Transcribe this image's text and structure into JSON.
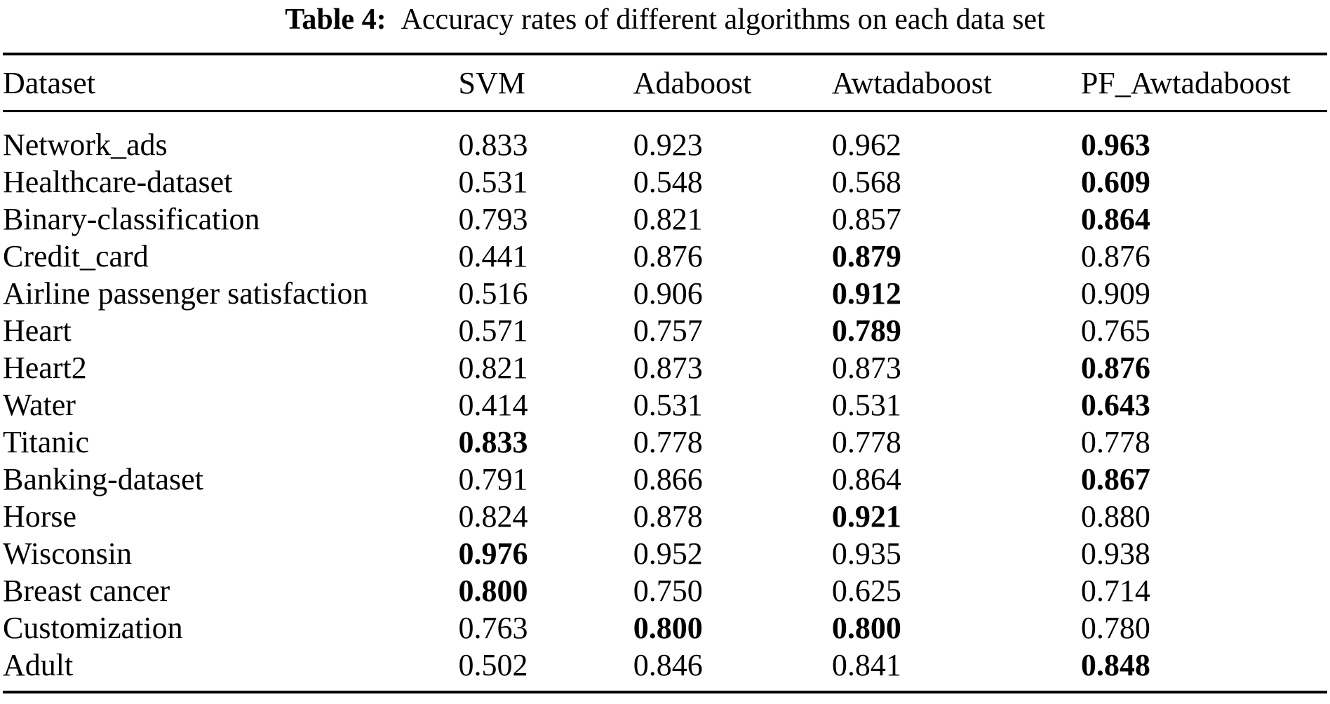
{
  "caption": {
    "label": "Table 4:",
    "text": "Accuracy rates of different algorithms on each data set"
  },
  "table": {
    "columns": [
      "Dataset",
      "SVM",
      "Adaboost",
      "Awtadaboost",
      "PF_Awtadaboost"
    ],
    "rows": [
      {
        "dataset": "Network_ads",
        "values": [
          "0.833",
          "0.923",
          "0.962",
          "0.963"
        ],
        "bold": [
          false,
          false,
          false,
          true
        ]
      },
      {
        "dataset": "Healthcare-dataset",
        "values": [
          "0.531",
          "0.548",
          "0.568",
          "0.609"
        ],
        "bold": [
          false,
          false,
          false,
          true
        ]
      },
      {
        "dataset": "Binary-classification",
        "values": [
          "0.793",
          "0.821",
          "0.857",
          "0.864"
        ],
        "bold": [
          false,
          false,
          false,
          true
        ]
      },
      {
        "dataset": "Credit_card",
        "values": [
          "0.441",
          "0.876",
          "0.879",
          "0.876"
        ],
        "bold": [
          false,
          false,
          true,
          false
        ]
      },
      {
        "dataset": "Airline passenger satisfaction",
        "values": [
          "0.516",
          "0.906",
          "0.912",
          "0.909"
        ],
        "bold": [
          false,
          false,
          true,
          false
        ]
      },
      {
        "dataset": "Heart",
        "values": [
          "0.571",
          "0.757",
          "0.789",
          "0.765"
        ],
        "bold": [
          false,
          false,
          true,
          false
        ]
      },
      {
        "dataset": "Heart2",
        "values": [
          "0.821",
          "0.873",
          "0.873",
          "0.876"
        ],
        "bold": [
          false,
          false,
          false,
          true
        ]
      },
      {
        "dataset": "Water",
        "values": [
          "0.414",
          "0.531",
          "0.531",
          "0.643"
        ],
        "bold": [
          false,
          false,
          false,
          true
        ]
      },
      {
        "dataset": "Titanic",
        "values": [
          "0.833",
          "0.778",
          "0.778",
          "0.778"
        ],
        "bold": [
          true,
          false,
          false,
          false
        ]
      },
      {
        "dataset": "Banking-dataset",
        "values": [
          "0.791",
          "0.866",
          "0.864",
          "0.867"
        ],
        "bold": [
          false,
          false,
          false,
          true
        ]
      },
      {
        "dataset": "Horse",
        "values": [
          "0.824",
          "0.878",
          "0.921",
          "0.880"
        ],
        "bold": [
          false,
          false,
          true,
          false
        ]
      },
      {
        "dataset": "Wisconsin",
        "values": [
          "0.976",
          "0.952",
          "0.935",
          "0.938"
        ],
        "bold": [
          true,
          false,
          false,
          false
        ]
      },
      {
        "dataset": "Breast cancer",
        "values": [
          "0.800",
          "0.750",
          "0.625",
          "0.714"
        ],
        "bold": [
          true,
          false,
          false,
          false
        ]
      },
      {
        "dataset": "Customization",
        "values": [
          "0.763",
          "0.800",
          "0.800",
          "0.780"
        ],
        "bold": [
          false,
          true,
          true,
          false
        ]
      },
      {
        "dataset": "Adult",
        "values": [
          "0.502",
          "0.846",
          "0.841",
          "0.848"
        ],
        "bold": [
          false,
          false,
          false,
          true
        ]
      }
    ]
  },
  "chart_data": {
    "type": "table",
    "title": "Table 4: Accuracy rates of different algorithms on each data set",
    "categories": [
      "Network_ads",
      "Healthcare-dataset",
      "Binary-classification",
      "Credit_card",
      "Airline passenger satisfaction",
      "Heart",
      "Heart2",
      "Water",
      "Titanic",
      "Banking-dataset",
      "Horse",
      "Wisconsin",
      "Breast cancer",
      "Customization",
      "Adult"
    ],
    "series": [
      {
        "name": "SVM",
        "values": [
          0.833,
          0.531,
          0.793,
          0.441,
          0.516,
          0.571,
          0.821,
          0.414,
          0.833,
          0.791,
          0.824,
          0.976,
          0.8,
          0.763,
          0.502
        ]
      },
      {
        "name": "Adaboost",
        "values": [
          0.923,
          0.548,
          0.821,
          0.876,
          0.906,
          0.757,
          0.873,
          0.531,
          0.778,
          0.866,
          0.878,
          0.952,
          0.75,
          0.8,
          0.846
        ]
      },
      {
        "name": "Awtadaboost",
        "values": [
          0.962,
          0.568,
          0.857,
          0.879,
          0.912,
          0.789,
          0.873,
          0.531,
          0.778,
          0.864,
          0.921,
          0.935,
          0.625,
          0.8,
          0.841
        ]
      },
      {
        "name": "PF_Awtadaboost",
        "values": [
          0.963,
          0.609,
          0.864,
          0.876,
          0.909,
          0.765,
          0.876,
          0.643,
          0.778,
          0.867,
          0.88,
          0.938,
          0.714,
          0.78,
          0.848
        ]
      }
    ]
  }
}
